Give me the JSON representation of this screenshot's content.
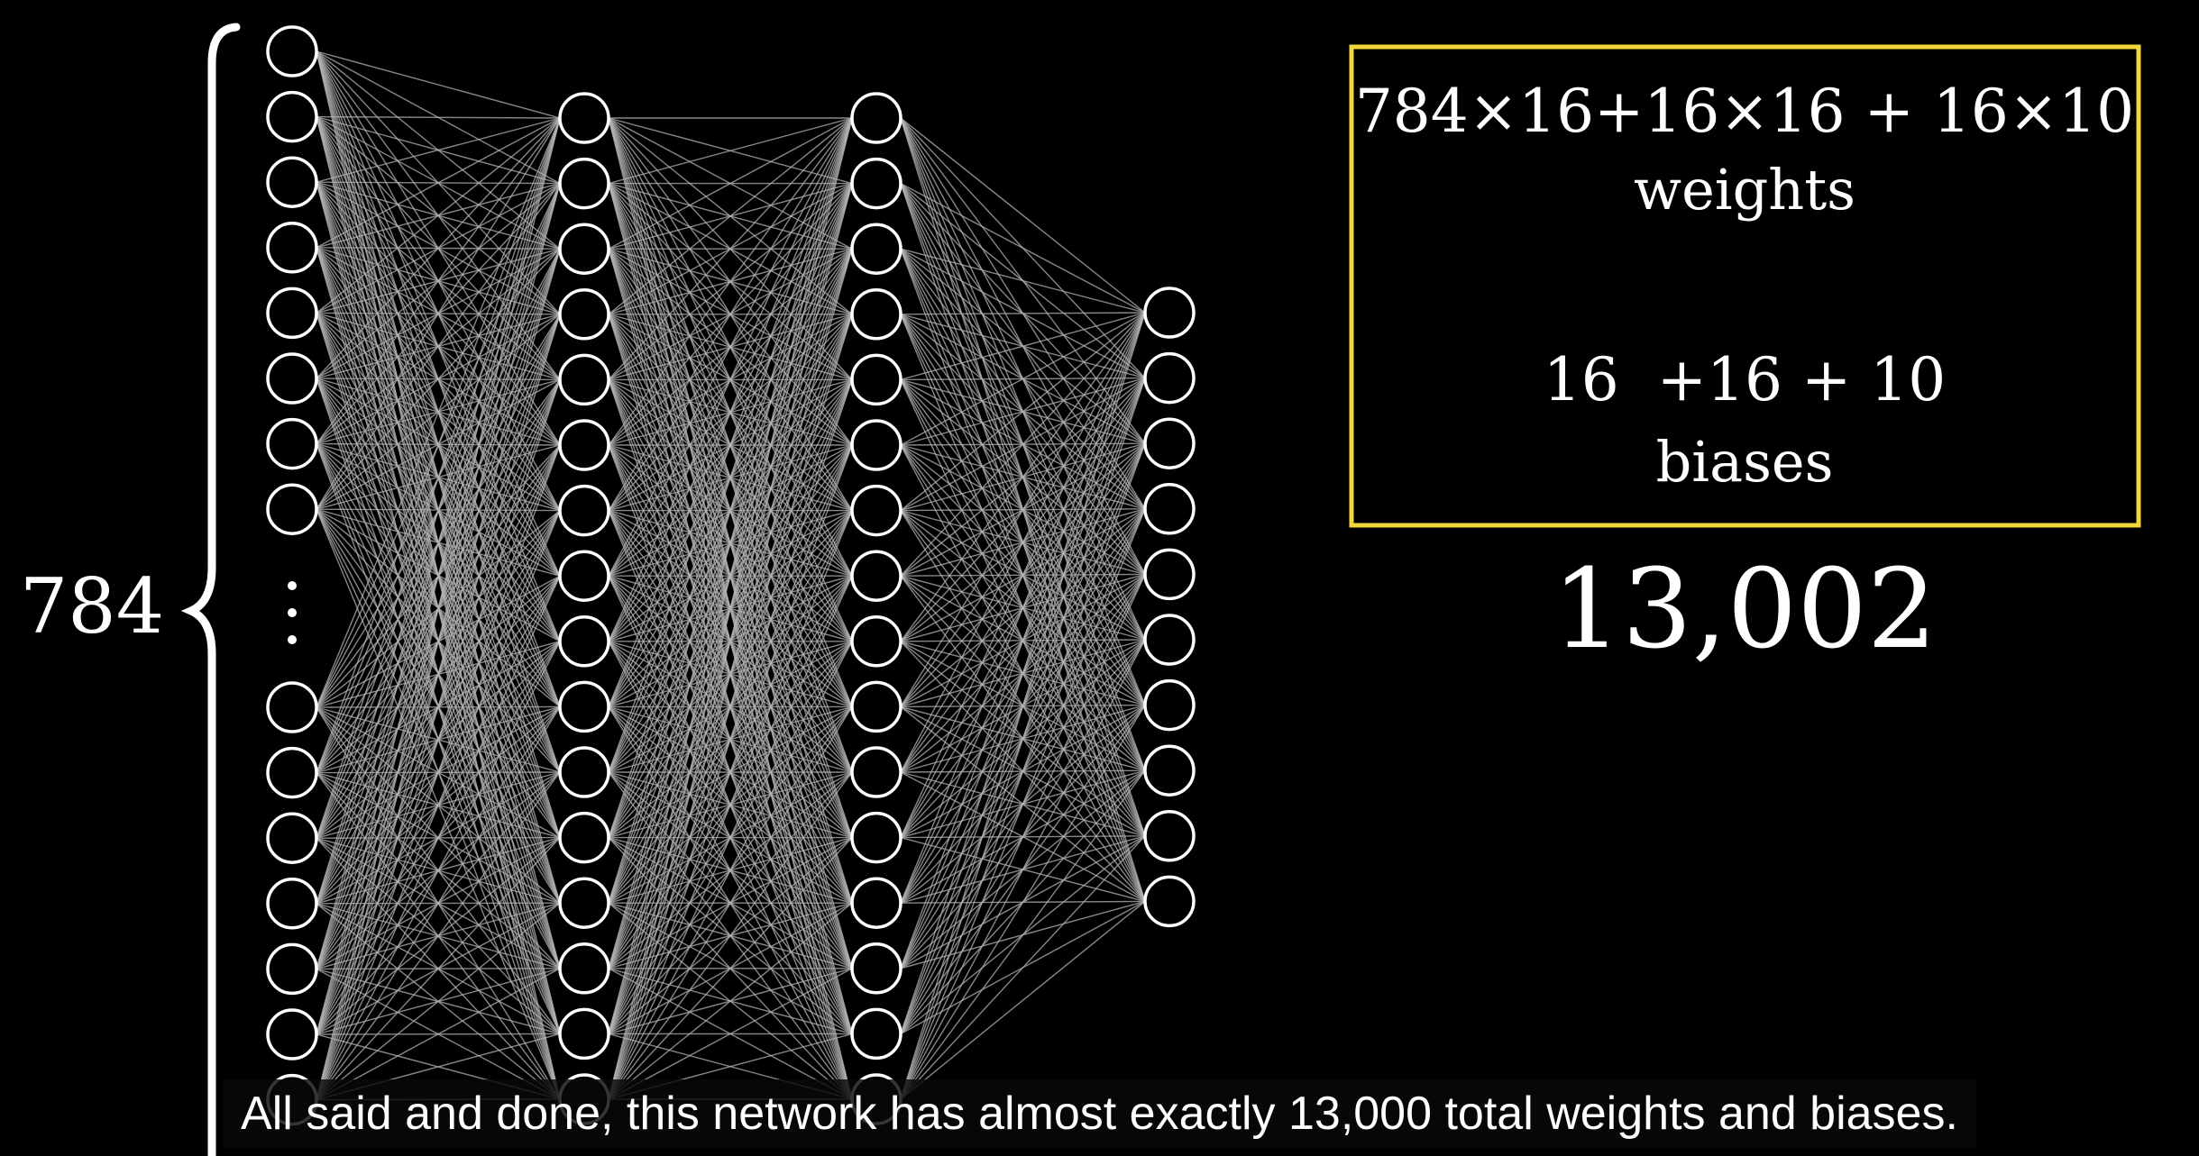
{
  "network": {
    "input_count_label": "784",
    "layers": [
      {
        "name": "input",
        "top_visible": 8,
        "bottom_visible": 7,
        "ellipsis": true
      },
      {
        "name": "hidden-1",
        "neurons": 16
      },
      {
        "name": "hidden-2",
        "neurons": 16
      },
      {
        "name": "output",
        "neurons": 10
      }
    ]
  },
  "info_box": {
    "weights_formula": "784×16+16×16 + 16×10",
    "weights_label": "weights",
    "biases_formula": "16  +16 + 10",
    "biases_label": "biases",
    "border_color": "#f1d63c"
  },
  "total": "13,002",
  "caption": "All said and done, this network has almost exactly 13,000 total weights and biases.",
  "colors": {
    "background": "#000000",
    "neuron_stroke": "#ffffff",
    "edge_stroke": "#b4b4b4"
  }
}
